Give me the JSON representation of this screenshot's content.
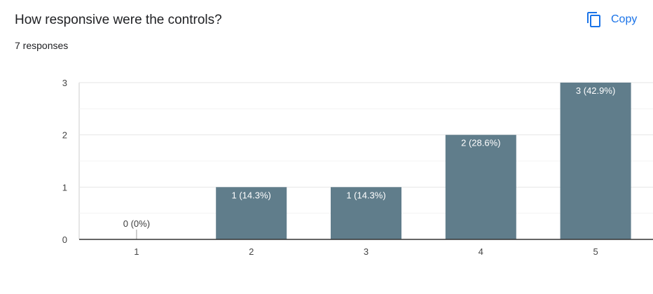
{
  "header": {
    "question": "How responsive were the controls?",
    "responses": "7 responses",
    "copy_label": "Copy"
  },
  "colors": {
    "bar": "#607d8b",
    "accent": "#1a73e8"
  },
  "chart_data": {
    "type": "bar",
    "title": "",
    "xlabel": "",
    "ylabel": "",
    "categories": [
      "1",
      "2",
      "3",
      "4",
      "5"
    ],
    "values": [
      0,
      1,
      1,
      2,
      3
    ],
    "data_labels": [
      "0 (0%)",
      "1 (14.3%)",
      "1 (14.3%)",
      "2 (28.6%)",
      "3 (42.9%)"
    ],
    "ylim": [
      0,
      3
    ],
    "yticks": [
      "0",
      "1",
      "2",
      "3"
    ],
    "grid": true
  }
}
